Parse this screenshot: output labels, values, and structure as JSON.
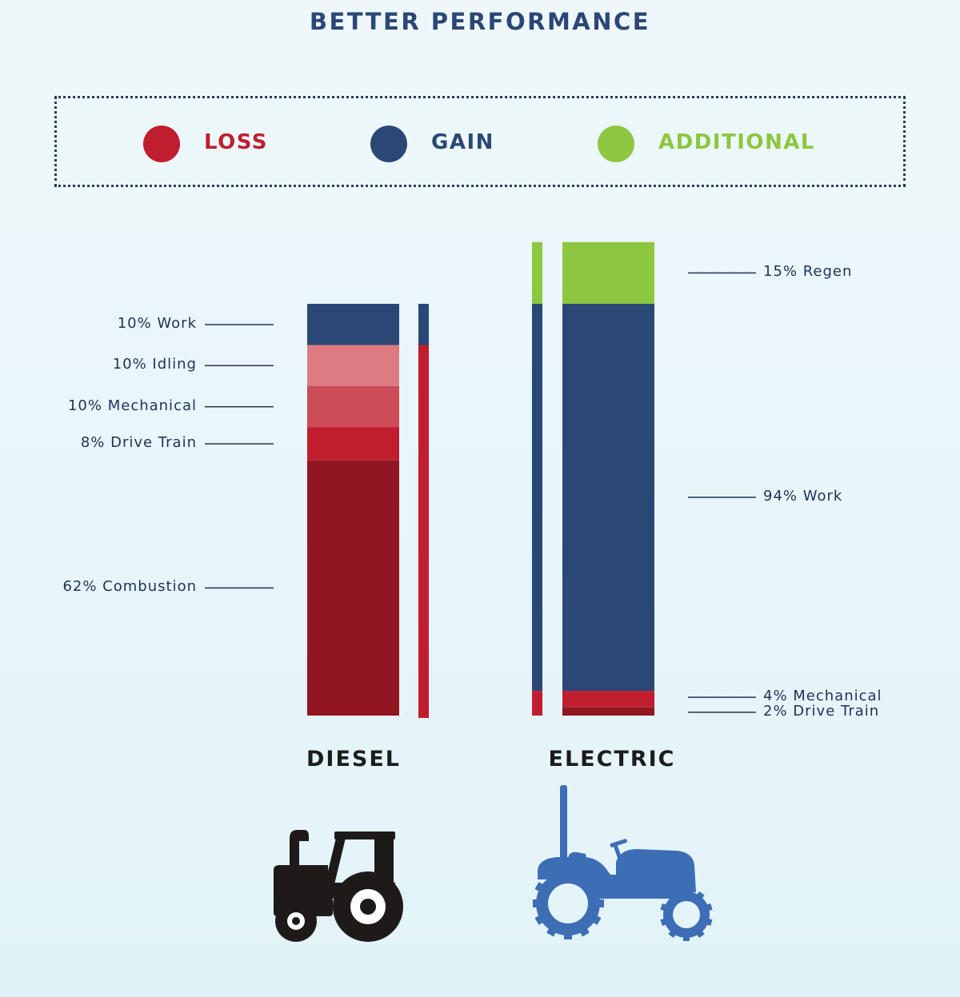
{
  "title": "BETTER PERFORMANCE",
  "legend": [
    {
      "label": "LOSS",
      "color": "#c01e2f"
    },
    {
      "label": "GAIN",
      "color": "#2b4775"
    },
    {
      "label": "ADDITIONAL",
      "color": "#8dc63f"
    }
  ],
  "chart_data": {
    "type": "bar",
    "stacked": true,
    "categories": [
      "DIESEL",
      "ELECTRIC"
    ],
    "bars": [
      {
        "category": "DIESEL",
        "segments": [
          {
            "label": "10% Work",
            "value": 10,
            "kind": "gain",
            "color": "#2b4775"
          },
          {
            "label": "10% Idling",
            "value": 10,
            "kind": "loss",
            "color": "#dc7b82"
          },
          {
            "label": "10% Mechanical",
            "value": 10,
            "kind": "loss",
            "color": "#cb4b56"
          },
          {
            "label": "8% Drive Train",
            "value": 8,
            "kind": "loss",
            "color": "#c01e2f"
          },
          {
            "label": "62% Combustion",
            "value": 62,
            "kind": "loss",
            "color": "#921522"
          }
        ]
      },
      {
        "category": "ELECTRIC",
        "segments": [
          {
            "label": "15% Regen",
            "value": 15,
            "kind": "additional",
            "color": "#8dc63f"
          },
          {
            "label": "94% Work",
            "value": 94,
            "kind": "gain",
            "color": "#2b4775"
          },
          {
            "label": "4% Mechanical",
            "value": 4,
            "kind": "loss",
            "color": "#c01e2f"
          },
          {
            "label": "2% Drive Train",
            "value": 2,
            "kind": "loss",
            "color": "#921522"
          }
        ]
      }
    ],
    "legend_position": "top",
    "grid": false
  },
  "icons": {
    "diesel": "diesel-tractor-icon",
    "electric": "electric-tractor-icon"
  },
  "colors": {
    "title": "#2b4775",
    "diesel_tractor": "#1f1a1a",
    "electric_tractor": "#3d6db5"
  }
}
